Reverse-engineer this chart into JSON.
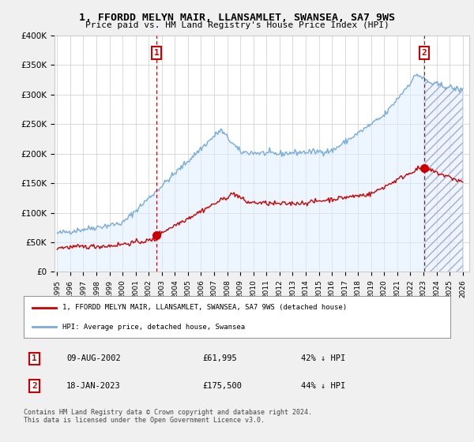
{
  "title": "1, FFORDD MELYN MAIR, LLANSAMLET, SWANSEA, SA7 9WS",
  "subtitle": "Price paid vs. HM Land Registry's House Price Index (HPI)",
  "legend_label_red": "1, FFORDD MELYN MAIR, LLANSAMLET, SWANSEA, SA7 9WS (detached house)",
  "legend_label_blue": "HPI: Average price, detached house, Swansea",
  "footer": "Contains HM Land Registry data © Crown copyright and database right 2024.\nThis data is licensed under the Open Government Licence v3.0.",
  "transaction1_label": "1",
  "transaction1_date": "09-AUG-2002",
  "transaction1_price": "£61,995",
  "transaction1_hpi": "42% ↓ HPI",
  "transaction2_label": "2",
  "transaction2_date": "18-JAN-2023",
  "transaction2_price": "£175,500",
  "transaction2_hpi": "44% ↓ HPI",
  "ylim": [
    0,
    400000
  ],
  "yticks": [
    0,
    50000,
    100000,
    150000,
    200000,
    250000,
    300000,
    350000,
    400000
  ],
  "background_color": "#f0f0f0",
  "plot_bg_color": "#ffffff",
  "red_color": "#cc0000",
  "blue_color": "#7aacdc",
  "blue_fill_color": "#ddeeff",
  "marker1_x": 2002.6,
  "marker1_y": 61995,
  "marker2_x": 2023.05,
  "marker2_y": 175500,
  "vline1_x": 2002.6,
  "vline2_x": 2023.05,
  "hatch_after_x": 2023.05,
  "xlim_left": 1994.8,
  "xlim_right": 2026.5
}
